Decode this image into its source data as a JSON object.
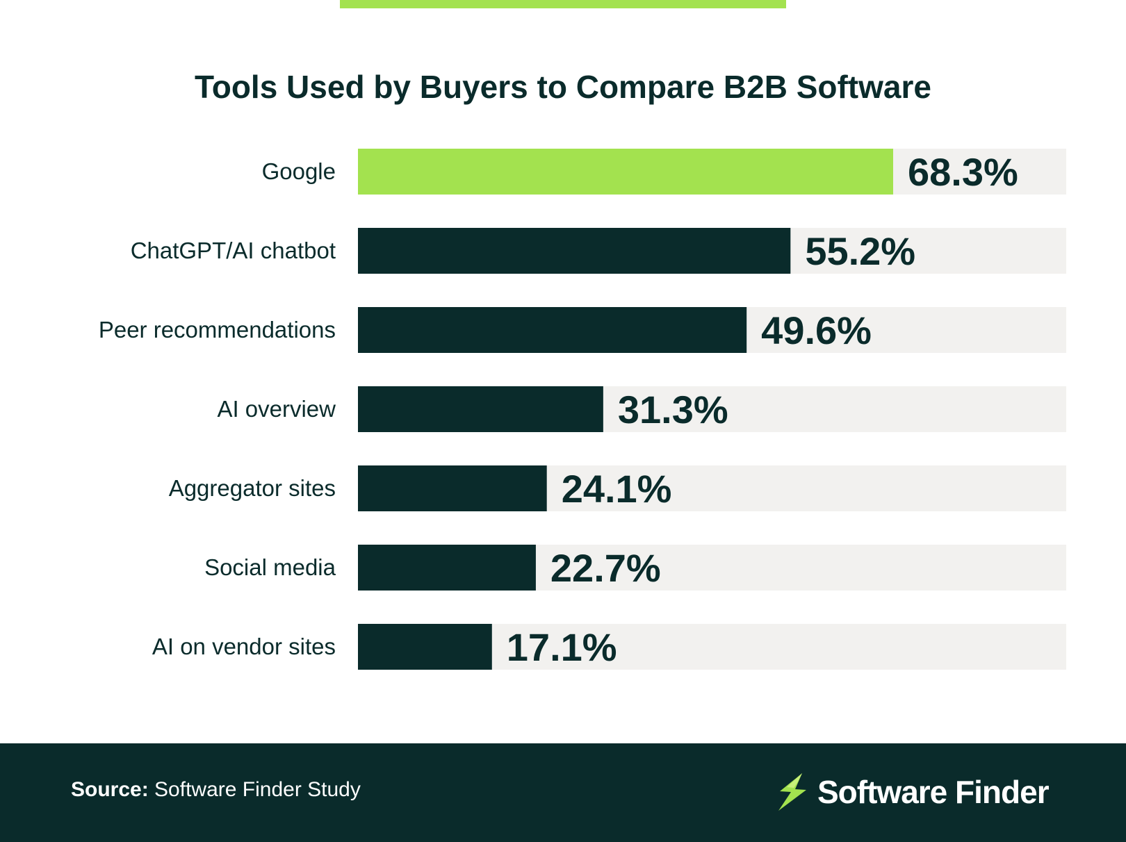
{
  "chart_data": {
    "type": "bar",
    "orientation": "horizontal",
    "title": "Tools Used by Buyers to Compare B2B Software",
    "categories": [
      "Google",
      "ChatGPT/AI chatbot",
      "Peer recommendations",
      "AI overview",
      "Aggregator sites",
      "Social media",
      "AI on vendor sites"
    ],
    "values": [
      68.3,
      55.2,
      49.6,
      31.3,
      24.1,
      22.7,
      17.1
    ],
    "value_labels": [
      "68.3%",
      "55.2%",
      "49.6%",
      "31.3%",
      "24.1%",
      "22.7%",
      "17.1%"
    ],
    "xlim": [
      0,
      90
    ],
    "grid": false,
    "colors": {
      "highlight": "#a3e24f",
      "bar": "#0a2b2b",
      "track": "#f2f1ef"
    }
  },
  "footer": {
    "source_label": "Source:",
    "source_text": "Software Finder Study",
    "brand_name": "Software Finder",
    "brand_icon": "lightning-bolt-icon"
  }
}
